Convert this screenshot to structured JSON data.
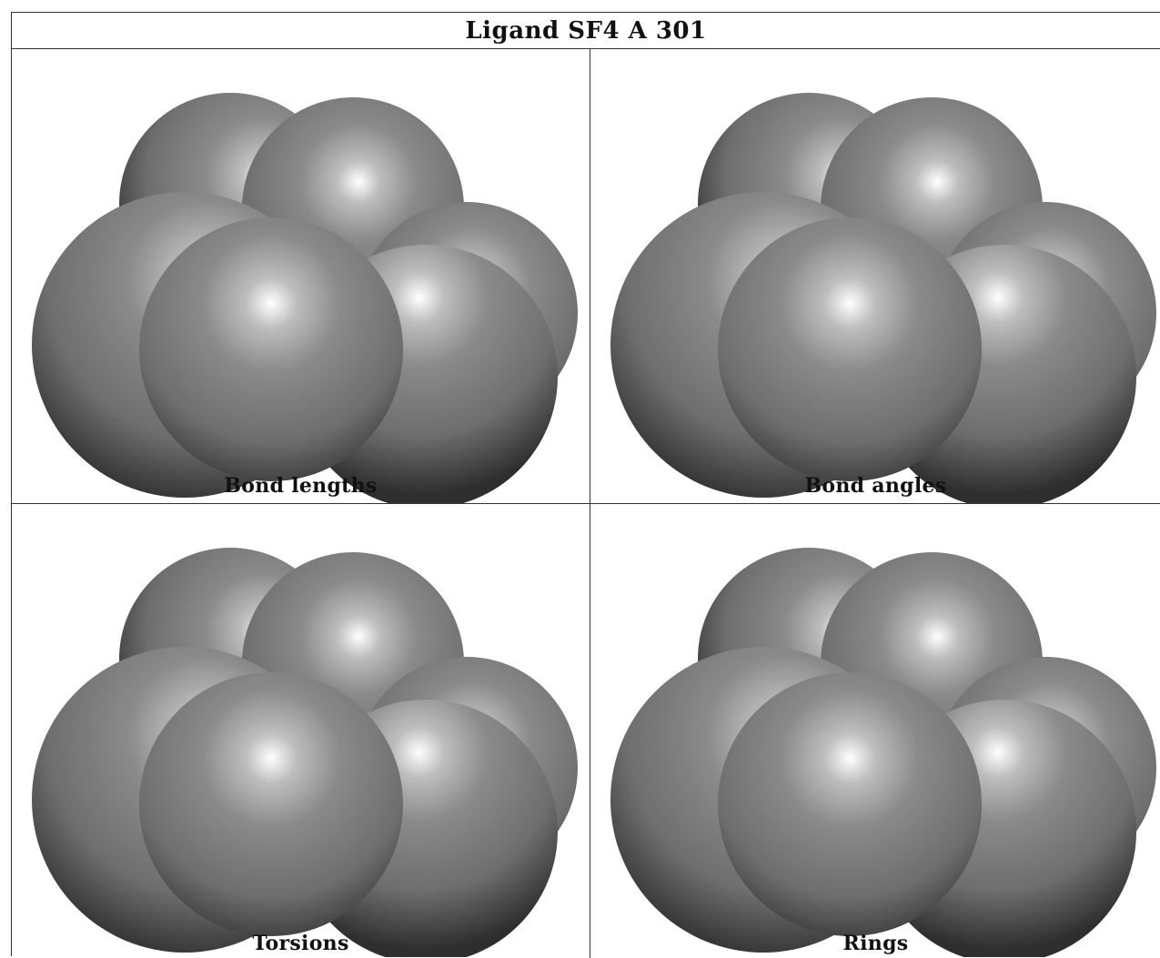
{
  "title": "Ligand SF4 A 301",
  "panels": [
    {
      "caption": "Bond lengths",
      "icon": "molecule-spacefill-icon"
    },
    {
      "caption": "Bond angles",
      "icon": "molecule-spacefill-icon"
    },
    {
      "caption": "Torsions",
      "icon": "molecule-spacefill-icon"
    },
    {
      "caption": "Rings",
      "icon": "molecule-spacefill-icon"
    }
  ],
  "colors": {
    "atom_base": "#6e6e6e",
    "atom_highlight": "#ffffff",
    "atom_shadow": "#2e2e2e",
    "border": "#333333"
  }
}
